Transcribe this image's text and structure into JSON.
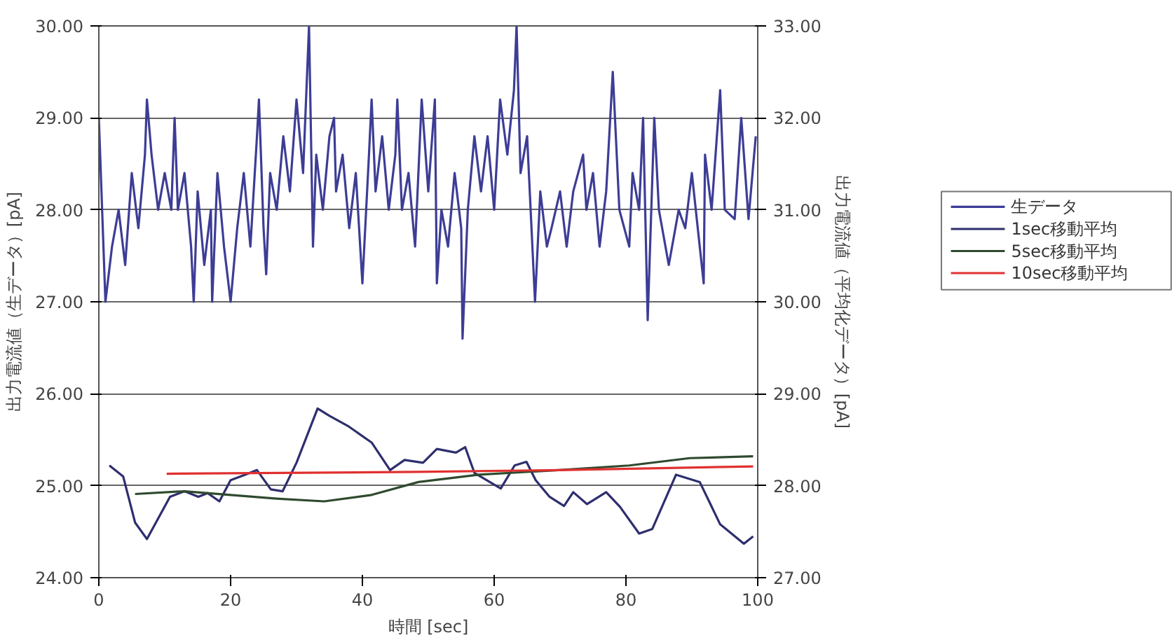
{
  "chart_data": {
    "type": "line",
    "xlabel": "時間 [sec]",
    "ylabel": "出力電流値（生データ）[pA]",
    "y2label": "出力電流値（平均化データ）[pA]",
    "xlim": [
      0,
      100
    ],
    "xticks": [
      0,
      20,
      40,
      60,
      80,
      100
    ],
    "ylim": [
      24,
      30
    ],
    "yticks": [
      {
        "value": 24,
        "label": "24.00"
      },
      {
        "value": 25,
        "label": "25.00"
      },
      {
        "value": 26,
        "label": "26.00"
      },
      {
        "value": 27,
        "label": "27.00"
      },
      {
        "value": 28,
        "label": "28.00"
      },
      {
        "value": 29,
        "label": "29.00"
      },
      {
        "value": 30,
        "label": "30.00"
      }
    ],
    "y2lim": [
      27,
      33
    ],
    "y2ticks": [
      {
        "value": 27,
        "label": "27.00"
      },
      {
        "value": 28,
        "label": "28.00"
      },
      {
        "value": 29,
        "label": "29.00"
      },
      {
        "value": 30,
        "label": "30.00"
      },
      {
        "value": 31,
        "label": "31.00"
      },
      {
        "value": 32,
        "label": "32.00"
      },
      {
        "value": 33,
        "label": "33.00"
      }
    ],
    "grid": "y",
    "legend": "right",
    "line_style": "solid",
    "series": [
      {
        "name": "生データ",
        "color": "#3d3d96",
        "x": [
          0,
          1,
          2,
          3,
          4,
          5,
          6,
          7,
          7.3,
          8,
          9,
          10,
          11,
          11.5,
          12,
          13,
          14,
          14.4,
          15,
          16,
          17,
          17.2,
          18,
          19,
          20,
          21,
          22,
          23,
          24,
          24.3,
          25,
          25.4,
          26,
          27,
          28,
          29,
          30,
          31,
          31.9,
          32.5,
          33,
          34,
          35,
          35.7,
          36,
          37,
          38,
          39,
          40,
          41,
          41.4,
          42,
          43,
          44,
          45,
          45.3,
          46,
          47,
          48,
          49,
          50,
          51,
          51.3,
          52,
          53,
          54,
          55,
          55.2,
          56,
          57,
          58,
          59,
          60,
          60.9,
          62,
          63,
          63.4,
          64,
          65,
          66.2,
          67,
          68,
          68.7,
          70,
          71,
          72,
          73.5,
          74,
          75,
          76,
          77,
          78,
          79,
          80.5,
          81,
          82,
          82.6,
          83.3,
          84.3,
          85,
          86.5,
          88,
          89,
          90,
          91.8,
          92,
          93,
          94.3,
          95,
          96.5,
          97.5,
          98.6,
          99.7
        ],
        "values": [
          29.0,
          27.0,
          27.6,
          28.0,
          27.4,
          28.4,
          27.8,
          28.6,
          29.2,
          28.6,
          28.0,
          28.4,
          28.0,
          29.0,
          28.0,
          28.4,
          27.6,
          27.0,
          28.2,
          27.4,
          28.0,
          27.0,
          28.4,
          27.6,
          27.0,
          27.8,
          28.4,
          27.6,
          28.8,
          29.2,
          27.8,
          27.3,
          28.4,
          28.0,
          28.8,
          28.2,
          29.2,
          28.4,
          30.0,
          27.6,
          28.6,
          28.0,
          28.8,
          29.0,
          28.2,
          28.6,
          27.8,
          28.4,
          27.2,
          28.6,
          29.2,
          28.2,
          28.8,
          28.0,
          28.6,
          29.2,
          28.0,
          28.4,
          27.6,
          29.2,
          28.2,
          29.2,
          27.2,
          28.0,
          27.6,
          28.4,
          27.8,
          26.6,
          28.0,
          28.8,
          28.2,
          28.8,
          28.0,
          29.2,
          28.6,
          29.3,
          30.0,
          28.4,
          28.8,
          27.0,
          28.2,
          27.6,
          27.8,
          28.2,
          27.6,
          28.2,
          28.6,
          28.0,
          28.4,
          27.6,
          28.2,
          29.5,
          28.0,
          27.6,
          28.4,
          28.0,
          29.0,
          26.8,
          29.0,
          28.0,
          27.4,
          28.0,
          27.8,
          28.4,
          27.2,
          28.6,
          28.0,
          29.3,
          28.0,
          27.9,
          29.0,
          27.9,
          28.8
        ]
      },
      {
        "name": "1sec移動平均",
        "color": "#2e2e6e",
        "axis": "y2",
        "x": [
          1.6,
          3.7,
          5.5,
          7.3,
          10.8,
          13,
          15.1,
          16.5,
          18.3,
          20,
          22.2,
          24,
          26.1,
          27.9,
          30,
          33.2,
          35,
          37.8,
          41.4,
          44.2,
          46.4,
          49.2,
          51.3,
          54.2,
          55.6,
          57,
          61,
          63.1,
          64.9,
          66.3,
          68.4,
          70.6,
          72,
          74.1,
          77,
          79.1,
          82,
          84,
          87.6,
          91.2,
          94.3,
          97.9,
          99.3
        ],
        "values": [
          28.22,
          28.1,
          27.6,
          27.42,
          27.88,
          27.94,
          27.88,
          27.92,
          27.83,
          28.06,
          28.12,
          28.17,
          27.96,
          27.94,
          28.25,
          28.84,
          28.76,
          28.65,
          28.47,
          28.17,
          28.28,
          28.25,
          28.4,
          28.36,
          28.42,
          28.14,
          27.97,
          28.22,
          28.26,
          28.06,
          27.88,
          27.78,
          27.93,
          27.8,
          27.93,
          27.77,
          27.48,
          27.53,
          28.12,
          28.04,
          27.58,
          27.37,
          27.45
        ]
      },
      {
        "name": "5sec移動平均",
        "color": "#2f4a2f",
        "axis": "y2",
        "x": [
          5.5,
          13,
          20,
          27,
          34.2,
          41.4,
          48.5,
          57.7,
          69.8,
          80.5,
          89.7,
          99.3
        ],
        "values": [
          27.91,
          27.94,
          27.9,
          27.86,
          27.83,
          27.9,
          28.04,
          28.12,
          28.17,
          28.22,
          28.3,
          28.32
        ]
      },
      {
        "name": "10sec移動平均",
        "color": "#e03030",
        "axis": "y2",
        "x": [
          10.3,
          48.5,
          69.8,
          99.3
        ],
        "values": [
          28.13,
          28.15,
          28.17,
          28.21
        ]
      }
    ]
  }
}
